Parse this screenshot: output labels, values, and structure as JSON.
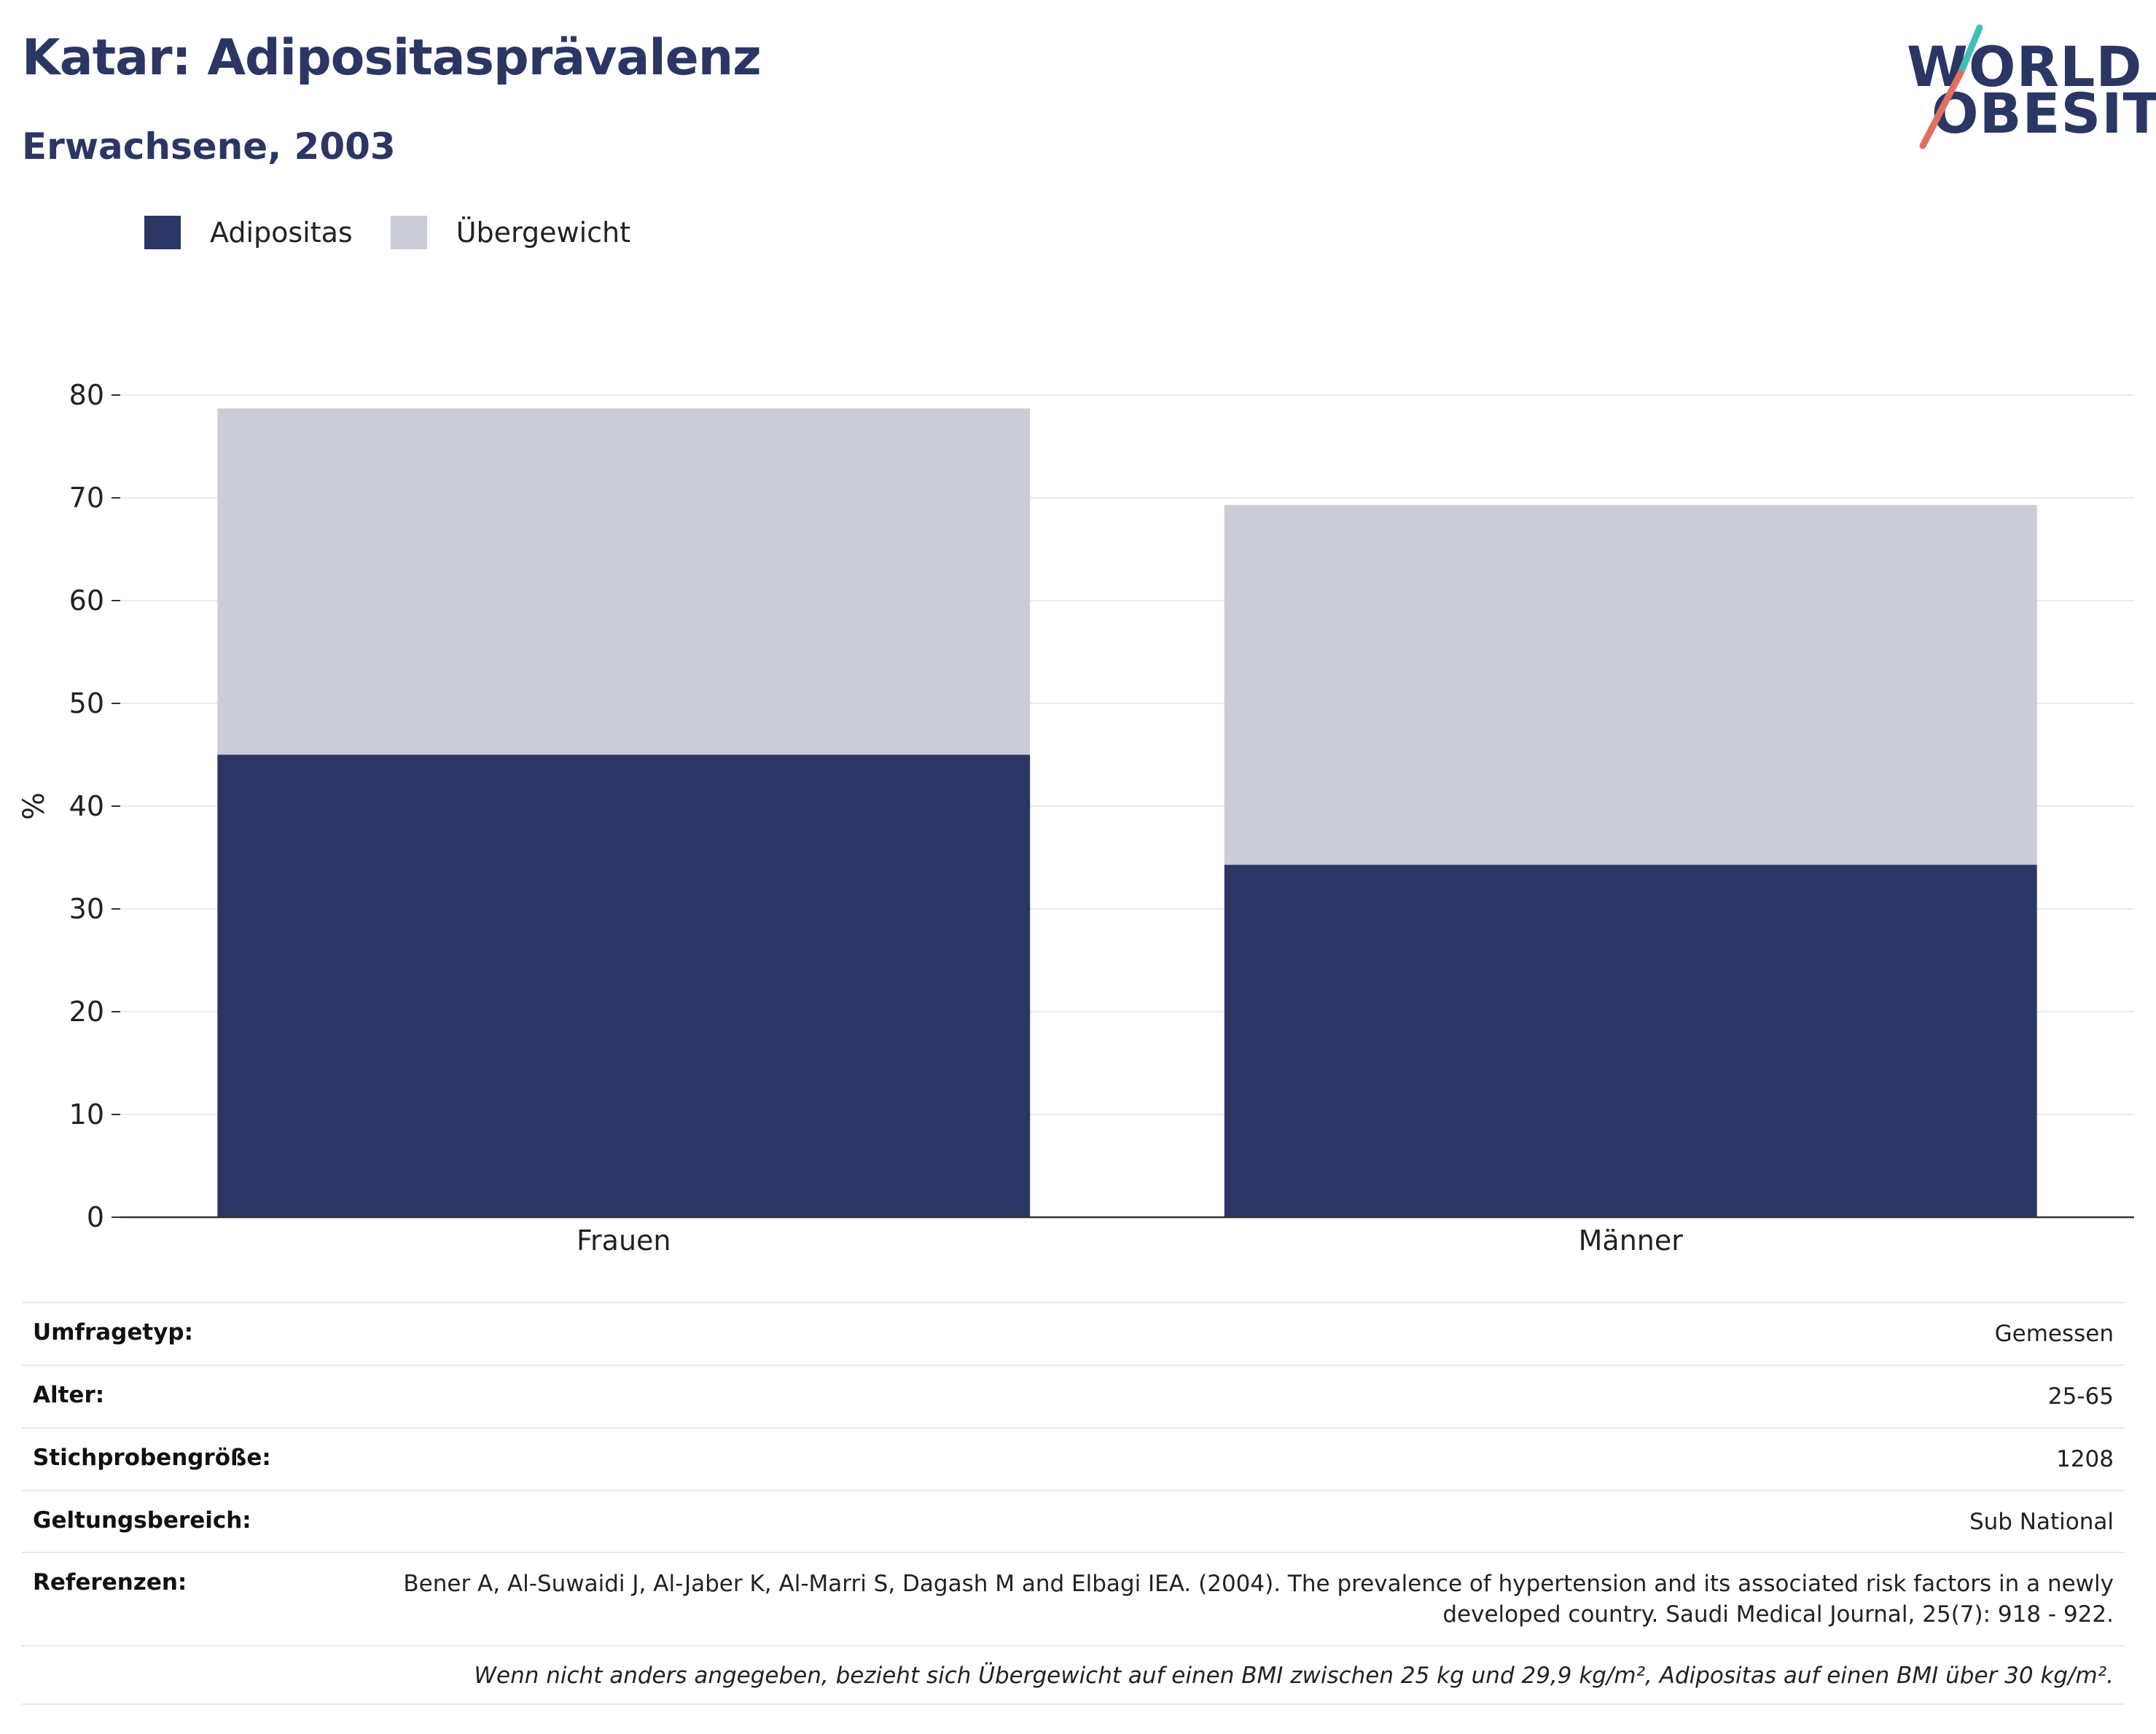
{
  "header": {
    "title": "Katar: Adipositasprävalenz",
    "subtitle": "Erwachsene, 2003"
  },
  "logo": {
    "line1": "WORLD",
    "line2": "OBESITY",
    "accent_colors": [
      "#3fbfb6",
      "#e0705f"
    ]
  },
  "legend": [
    {
      "label": "Adipositas",
      "color": "#2b3664"
    },
    {
      "label": "Übergewicht",
      "color": "#cacdd8"
    }
  ],
  "chart_data": {
    "type": "bar",
    "stacked": true,
    "categories": [
      "Frauen",
      "Männer"
    ],
    "series": [
      {
        "name": "Adipositas",
        "color": "#2b3664",
        "values": [
          45.0,
          34.3
        ]
      },
      {
        "name": "Übergewicht",
        "color": "#cacdd8",
        "values": [
          33.7,
          35.0
        ]
      }
    ],
    "ylabel": "%",
    "ylim": [
      0,
      80
    ],
    "yticks": [
      "0",
      "10",
      "20",
      "30",
      "40",
      "50",
      "60",
      "70",
      "80"
    ],
    "grid": true,
    "legend_position": "top-left"
  },
  "info": {
    "rows": [
      {
        "key": "Umfragetyp:",
        "value": "Gemessen"
      },
      {
        "key": "Alter:",
        "value": "25-65"
      },
      {
        "key": "Stichprobengröße:",
        "value": "1208"
      },
      {
        "key": "Geltungsbereich:",
        "value": "Sub National"
      },
      {
        "key": "Referenzen:",
        "value": "Bener A, Al-Suwaidi J, Al-Jaber K, Al-Marri S, Dagash M and Elbagi IEA. (2004). The prevalence of hypertension and its associated risk factors in a newly developed country. Saudi Medical Journal, 25(7): 918 - 922."
      }
    ],
    "note": "Wenn nicht anders angegeben, bezieht sich Übergewicht auf einen BMI zwischen 25 kg und 29,9 kg/m², Adipositas auf einen BMI über 30 kg/m²."
  }
}
